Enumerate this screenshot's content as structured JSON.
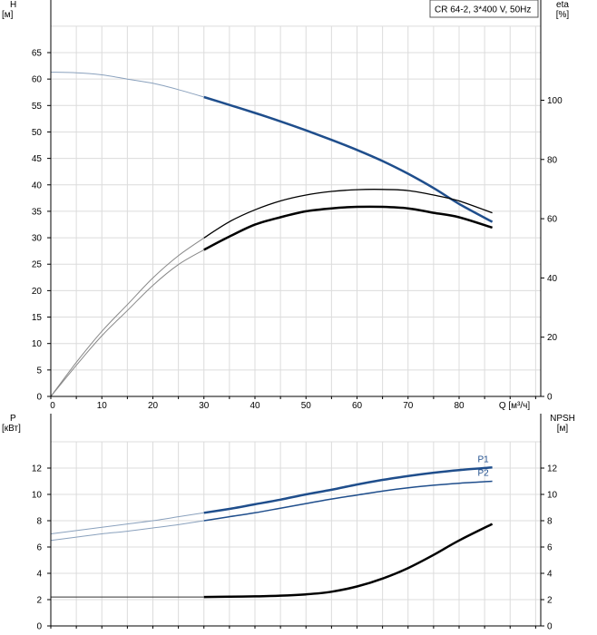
{
  "chart_data": [
    {
      "type": "line",
      "legend_box": "CR 64-2, 3*400 V, 50Hz",
      "xlabel": "Q [м³/ч]",
      "xlim": [
        0,
        96
      ],
      "xticks": [
        0,
        10,
        20,
        30,
        40,
        50,
        60,
        70,
        80
      ],
      "left_axis": {
        "label": [
          "H",
          "[м]"
        ],
        "ylim": [
          0,
          70
        ],
        "ticks": [
          0,
          5,
          10,
          15,
          20,
          25,
          30,
          35,
          40,
          45,
          50,
          55,
          60,
          65
        ]
      },
      "right_axis": {
        "label": [
          "eta",
          "[%]"
        ],
        "ylim": [
          0,
          125
        ],
        "ticks": [
          0,
          20,
          40,
          60,
          80,
          100
        ]
      },
      "grid": true,
      "series": [
        {
          "axis": "left",
          "color": "#1f4e8c",
          "width": 2.5,
          "thin_color": "#8aa1bd",
          "x": [
            0,
            5,
            10,
            15,
            20,
            25,
            30,
            35,
            40,
            45,
            50,
            55,
            60,
            65,
            70,
            75,
            80,
            86.5
          ],
          "y": [
            61.3,
            61.2,
            60.8,
            60.0,
            59.2,
            58.0,
            56.6,
            55.1,
            53.6,
            52.0,
            50.3,
            48.5,
            46.6,
            44.5,
            42.1,
            39.4,
            36.4,
            33.0
          ]
        },
        {
          "axis": "right",
          "color": "#000000",
          "width": 1.3,
          "thin_color": "#888888",
          "x": [
            0,
            5,
            10,
            15,
            20,
            25,
            30,
            35,
            40,
            45,
            50,
            55,
            60,
            65,
            70,
            75,
            80,
            86.5
          ],
          "y": [
            0,
            11.5,
            22,
            31,
            40,
            47.5,
            53.5,
            59,
            63,
            66,
            68,
            69.2,
            69.8,
            69.9,
            69.5,
            68,
            66,
            62
          ]
        },
        {
          "axis": "right",
          "color": "#000000",
          "width": 2.5,
          "thin_color": "#888888",
          "x": [
            0,
            5,
            10,
            15,
            20,
            25,
            30,
            35,
            40,
            45,
            50,
            55,
            60,
            65,
            70,
            75,
            80,
            86.5
          ],
          "y": [
            0,
            10.5,
            20.5,
            29,
            37.5,
            44.5,
            49.5,
            54,
            58,
            60.5,
            62.5,
            63.5,
            64,
            64,
            63.5,
            62,
            60.5,
            57
          ]
        }
      ]
    },
    {
      "type": "line",
      "xlim": [
        0,
        96
      ],
      "left_axis": {
        "label": [
          "P",
          "[кВт]"
        ],
        "ylim": [
          0,
          14.5
        ],
        "ticks": [
          0,
          2,
          4,
          6,
          8,
          10,
          12
        ]
      },
      "right_axis": {
        "label": [
          "NPSH",
          "[м]"
        ],
        "ylim": [
          0,
          14.5
        ],
        "ticks": [
          0,
          2,
          4,
          6,
          8,
          10,
          12
        ]
      },
      "grid": true,
      "series": [
        {
          "name": "P1",
          "axis": "left",
          "color": "#1f4e8c",
          "width": 2.5,
          "thin_color": "#8aa1bd",
          "x": [
            0,
            5,
            10,
            15,
            20,
            25,
            30,
            35,
            40,
            45,
            50,
            55,
            60,
            65,
            70,
            75,
            80,
            86.5
          ],
          "y": [
            7.0,
            7.25,
            7.5,
            7.75,
            8.0,
            8.3,
            8.6,
            8.9,
            9.25,
            9.6,
            10.0,
            10.35,
            10.75,
            11.1,
            11.4,
            11.65,
            11.85,
            12.05
          ]
        },
        {
          "name": "P2",
          "axis": "left",
          "color": "#1f4e8c",
          "width": 1.5,
          "thin_color": "#8aa1bd",
          "x": [
            0,
            5,
            10,
            15,
            20,
            25,
            30,
            35,
            40,
            45,
            50,
            55,
            60,
            65,
            70,
            75,
            80,
            86.5
          ],
          "y": [
            6.5,
            6.75,
            7.0,
            7.2,
            7.45,
            7.7,
            8.0,
            8.3,
            8.6,
            8.95,
            9.3,
            9.65,
            9.95,
            10.25,
            10.5,
            10.7,
            10.85,
            11.0
          ]
        },
        {
          "axis": "right",
          "color": "#000000",
          "width": 2.5,
          "thin_color": "#333333",
          "x": [
            0,
            5,
            10,
            15,
            20,
            25,
            30,
            35,
            40,
            45,
            50,
            55,
            60,
            65,
            70,
            75,
            80,
            86.5
          ],
          "y": [
            2.2,
            2.2,
            2.2,
            2.2,
            2.2,
            2.2,
            2.2,
            2.22,
            2.25,
            2.3,
            2.4,
            2.6,
            3.0,
            3.6,
            4.4,
            5.4,
            6.5,
            7.75
          ]
        }
      ]
    }
  ]
}
